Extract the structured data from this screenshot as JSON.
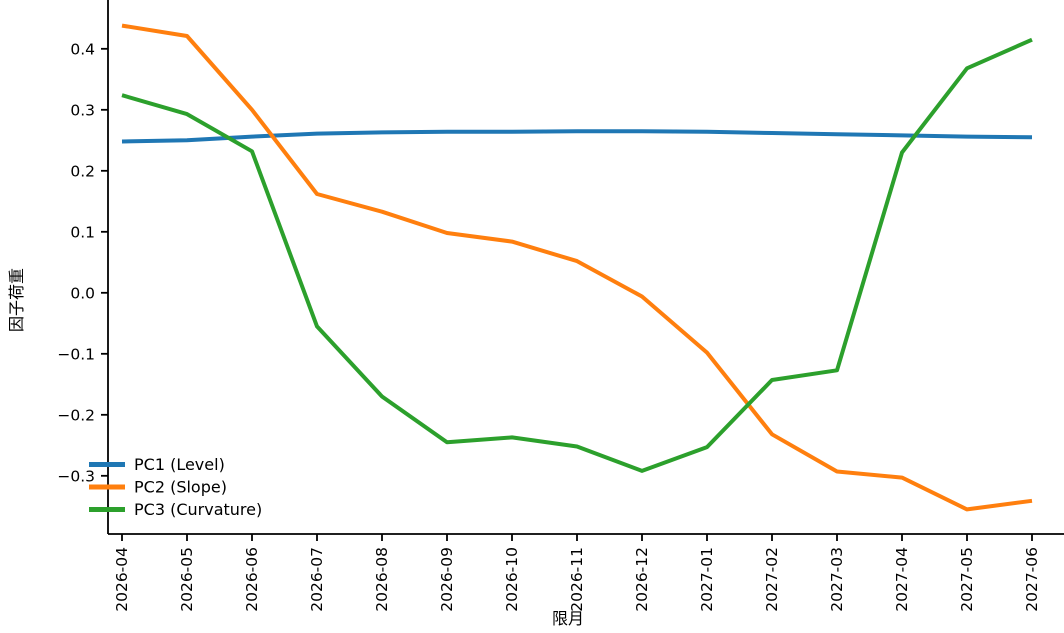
{
  "chart_data": {
    "type": "line",
    "title": "",
    "xlabel": "限月",
    "ylabel": "因子荷重",
    "categories": [
      "2026-04",
      "2026-05",
      "2026-06",
      "2026-07",
      "2026-08",
      "2026-09",
      "2026-10",
      "2026-11",
      "2026-12",
      "2027-01",
      "2027-02",
      "2027-03",
      "2027-04",
      "2027-05",
      "2027-06"
    ],
    "series": [
      {
        "name": "PC1 (Level)",
        "color": "#1f77b4",
        "values": [
          0.248,
          0.25,
          0.256,
          0.261,
          0.263,
          0.264,
          0.264,
          0.265,
          0.265,
          0.264,
          0.262,
          0.26,
          0.258,
          0.256,
          0.255
        ]
      },
      {
        "name": "PC2 (Slope)",
        "color": "#ff7f0e",
        "values": [
          0.438,
          0.421,
          0.3,
          0.162,
          0.133,
          0.098,
          0.084,
          0.052,
          -0.006,
          -0.098,
          -0.232,
          -0.293,
          -0.303,
          -0.355,
          -0.341
        ]
      },
      {
        "name": "PC3 (Curvature)",
        "color": "#2ca02c",
        "values": [
          0.324,
          0.293,
          0.232,
          -0.055,
          -0.17,
          -0.245,
          -0.237,
          -0.252,
          -0.292,
          -0.253,
          -0.143,
          -0.127,
          0.23,
          0.368,
          0.415
        ]
      }
    ],
    "yticks": [
      0.4,
      0.3,
      0.2,
      0.1,
      0.0,
      -0.1,
      -0.2,
      -0.3
    ],
    "ytick_labels": [
      "0.4",
      "0.3",
      "0.2",
      "0.1",
      "0.0",
      "−0.1",
      "−0.2",
      "−0.3"
    ],
    "ylim": [
      -0.395,
      0.48
    ],
    "grid": false,
    "x_tick_rotation_deg": 90,
    "legend": {
      "position": "lower left",
      "frame": false,
      "entries": [
        "PC1 (Level)",
        "PC2 (Slope)",
        "PC3 (Curvature)"
      ]
    }
  }
}
